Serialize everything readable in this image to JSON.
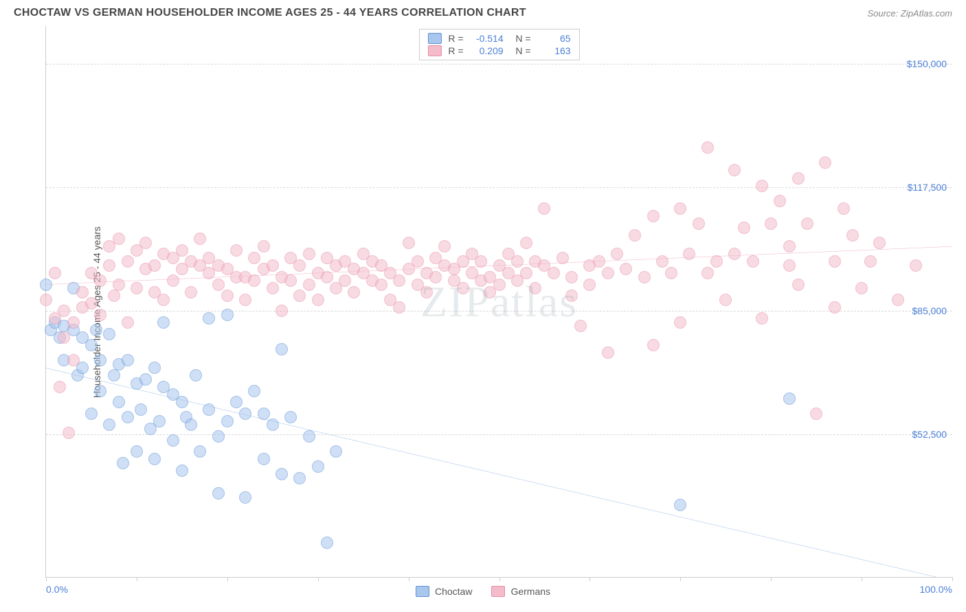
{
  "title": "CHOCTAW VS GERMAN HOUSEHOLDER INCOME AGES 25 - 44 YEARS CORRELATION CHART",
  "source_label": "Source: ZipAtlas.com",
  "ylabel": "Householder Income Ages 25 - 44 years",
  "watermark": "ZIPatlas",
  "chart": {
    "type": "scatter",
    "xlim": [
      0,
      100
    ],
    "ylim": [
      15000,
      160000
    ],
    "x_ticks": [
      0,
      10,
      20,
      30,
      40,
      50,
      60,
      70,
      80,
      90,
      100
    ],
    "x_tick_labels": {
      "0": "0.0%",
      "100": "100.0%"
    },
    "y_gridlines": [
      52500,
      85000,
      117500,
      150000
    ],
    "y_tick_labels": [
      "$52,500",
      "$85,000",
      "$117,500",
      "$150,000"
    ],
    "background_color": "#ffffff",
    "grid_color": "#d8d8d8",
    "axis_color": "#cccccc",
    "tick_label_color": "#4a7fd6",
    "point_radius": 9,
    "point_opacity": 0.55,
    "series": [
      {
        "name": "Choctaw",
        "fill": "#a9c6ed",
        "stroke": "#5b8fd6",
        "trend_color": "#2b6fd0",
        "trend_width": 2,
        "r": "-0.514",
        "n": "65",
        "trend": {
          "x1": 0,
          "y1": 70000,
          "x2": 100,
          "y2": 14000
        },
        "points": [
          [
            0,
            92000
          ],
          [
            0.5,
            80000
          ],
          [
            1,
            82000
          ],
          [
            1.5,
            78000
          ],
          [
            2,
            81000
          ],
          [
            2,
            72000
          ],
          [
            3,
            80000
          ],
          [
            3,
            91000
          ],
          [
            3.5,
            68000
          ],
          [
            4,
            78000
          ],
          [
            4,
            70000
          ],
          [
            5,
            76000
          ],
          [
            5,
            58000
          ],
          [
            5.5,
            80000
          ],
          [
            6,
            64000
          ],
          [
            6,
            72000
          ],
          [
            7,
            79000
          ],
          [
            7,
            55000
          ],
          [
            7.5,
            68000
          ],
          [
            8,
            71000
          ],
          [
            8,
            61000
          ],
          [
            8.5,
            45000
          ],
          [
            9,
            72000
          ],
          [
            9,
            57000
          ],
          [
            10,
            66000
          ],
          [
            10,
            48000
          ],
          [
            10.5,
            59000
          ],
          [
            11,
            67000
          ],
          [
            11.5,
            54000
          ],
          [
            12,
            70000
          ],
          [
            12,
            46000
          ],
          [
            12.5,
            56000
          ],
          [
            13,
            65000
          ],
          [
            13,
            82000
          ],
          [
            14,
            63000
          ],
          [
            14,
            51000
          ],
          [
            15,
            61000
          ],
          [
            15,
            43000
          ],
          [
            15.5,
            57000
          ],
          [
            16,
            55000
          ],
          [
            16.5,
            68000
          ],
          [
            17,
            48000
          ],
          [
            18,
            83000
          ],
          [
            18,
            59000
          ],
          [
            19,
            52000
          ],
          [
            19,
            37000
          ],
          [
            20,
            84000
          ],
          [
            20,
            56000
          ],
          [
            21,
            61000
          ],
          [
            22,
            36000
          ],
          [
            22,
            58000
          ],
          [
            23,
            64000
          ],
          [
            24,
            46000
          ],
          [
            24,
            58000
          ],
          [
            25,
            55000
          ],
          [
            26,
            42000
          ],
          [
            26,
            75000
          ],
          [
            27,
            57000
          ],
          [
            28,
            41000
          ],
          [
            29,
            52000
          ],
          [
            30,
            44000
          ],
          [
            31,
            24000
          ],
          [
            32,
            48000
          ],
          [
            70,
            34000
          ],
          [
            82,
            62000
          ]
        ]
      },
      {
        "name": "Germans",
        "fill": "#f4bccb",
        "stroke": "#e68aa5",
        "trend_color": "#e05a8a",
        "trend_width": 2,
        "r": "0.209",
        "n": "163",
        "trend": {
          "x1": 0,
          "y1": 92000,
          "x2": 100,
          "y2": 102000
        },
        "points": [
          [
            0,
            88000
          ],
          [
            1,
            83000
          ],
          [
            1,
            95000
          ],
          [
            1.5,
            65000
          ],
          [
            2,
            85000
          ],
          [
            2,
            78000
          ],
          [
            2.5,
            53000
          ],
          [
            3,
            72000
          ],
          [
            3,
            82000
          ],
          [
            4,
            90000
          ],
          [
            4,
            86000
          ],
          [
            5,
            87000
          ],
          [
            5,
            95000
          ],
          [
            6,
            93000
          ],
          [
            6,
            84000
          ],
          [
            7,
            97000
          ],
          [
            7,
            102000
          ],
          [
            7.5,
            89000
          ],
          [
            8,
            104000
          ],
          [
            8,
            92000
          ],
          [
            9,
            98000
          ],
          [
            9,
            82000
          ],
          [
            10,
            101000
          ],
          [
            10,
            91000
          ],
          [
            11,
            103000
          ],
          [
            11,
            96000
          ],
          [
            12,
            97000
          ],
          [
            12,
            90000
          ],
          [
            13,
            100000
          ],
          [
            13,
            88000
          ],
          [
            14,
            99000
          ],
          [
            14,
            93000
          ],
          [
            15,
            101000
          ],
          [
            15,
            96000
          ],
          [
            16,
            98000
          ],
          [
            16,
            90000
          ],
          [
            17,
            97000
          ],
          [
            17,
            104000
          ],
          [
            18,
            95000
          ],
          [
            18,
            99000
          ],
          [
            19,
            92000
          ],
          [
            19,
            97000
          ],
          [
            20,
            96000
          ],
          [
            20,
            89000
          ],
          [
            21,
            94000
          ],
          [
            21,
            101000
          ],
          [
            22,
            88000
          ],
          [
            22,
            94000
          ],
          [
            23,
            99000
          ],
          [
            23,
            93000
          ],
          [
            24,
            96000
          ],
          [
            24,
            102000
          ],
          [
            25,
            97000
          ],
          [
            25,
            91000
          ],
          [
            26,
            94000
          ],
          [
            26,
            85000
          ],
          [
            27,
            99000
          ],
          [
            27,
            93000
          ],
          [
            28,
            89000
          ],
          [
            28,
            97000
          ],
          [
            29,
            92000
          ],
          [
            29,
            100000
          ],
          [
            30,
            95000
          ],
          [
            30,
            88000
          ],
          [
            31,
            94000
          ],
          [
            31,
            99000
          ],
          [
            32,
            97000
          ],
          [
            32,
            91000
          ],
          [
            33,
            98000
          ],
          [
            33,
            93000
          ],
          [
            34,
            90000
          ],
          [
            34,
            96000
          ],
          [
            35,
            95000
          ],
          [
            35,
            100000
          ],
          [
            36,
            93000
          ],
          [
            36,
            98000
          ],
          [
            37,
            92000
          ],
          [
            37,
            97000
          ],
          [
            38,
            95000
          ],
          [
            38,
            88000
          ],
          [
            39,
            86000
          ],
          [
            39,
            93000
          ],
          [
            40,
            96000
          ],
          [
            40,
            103000
          ],
          [
            41,
            92000
          ],
          [
            41,
            98000
          ],
          [
            42,
            95000
          ],
          [
            42,
            90000
          ],
          [
            43,
            99000
          ],
          [
            43,
            94000
          ],
          [
            44,
            97000
          ],
          [
            44,
            102000
          ],
          [
            45,
            93000
          ],
          [
            45,
            96000
          ],
          [
            46,
            98000
          ],
          [
            46,
            91000
          ],
          [
            47,
            100000
          ],
          [
            47,
            95000
          ],
          [
            48,
            93000
          ],
          [
            48,
            98000
          ],
          [
            49,
            94000
          ],
          [
            49,
            90000
          ],
          [
            50,
            97000
          ],
          [
            50,
            92000
          ],
          [
            51,
            95000
          ],
          [
            51,
            100000
          ],
          [
            52,
            98000
          ],
          [
            52,
            93000
          ],
          [
            53,
            103000
          ],
          [
            53,
            95000
          ],
          [
            54,
            98000
          ],
          [
            54,
            91000
          ],
          [
            55,
            97000
          ],
          [
            55,
            112000
          ],
          [
            56,
            95000
          ],
          [
            57,
            99000
          ],
          [
            58,
            94000
          ],
          [
            58,
            89000
          ],
          [
            59,
            81000
          ],
          [
            60,
            97000
          ],
          [
            60,
            92000
          ],
          [
            61,
            98000
          ],
          [
            62,
            95000
          ],
          [
            62,
            74000
          ],
          [
            63,
            100000
          ],
          [
            64,
            96000
          ],
          [
            65,
            105000
          ],
          [
            66,
            94000
          ],
          [
            67,
            110000
          ],
          [
            67,
            76000
          ],
          [
            68,
            98000
          ],
          [
            69,
            95000
          ],
          [
            70,
            112000
          ],
          [
            70,
            82000
          ],
          [
            71,
            100000
          ],
          [
            72,
            108000
          ],
          [
            73,
            128000
          ],
          [
            73,
            95000
          ],
          [
            74,
            98000
          ],
          [
            75,
            88000
          ],
          [
            76,
            122000
          ],
          [
            76,
            100000
          ],
          [
            77,
            107000
          ],
          [
            78,
            98000
          ],
          [
            79,
            118000
          ],
          [
            79,
            83000
          ],
          [
            80,
            108000
          ],
          [
            81,
            114000
          ],
          [
            82,
            102000
          ],
          [
            82,
            97000
          ],
          [
            83,
            120000
          ],
          [
            83,
            92000
          ],
          [
            84,
            108000
          ],
          [
            85,
            58000
          ],
          [
            86,
            124000
          ],
          [
            87,
            98000
          ],
          [
            87,
            86000
          ],
          [
            88,
            112000
          ],
          [
            89,
            105000
          ],
          [
            90,
            91000
          ],
          [
            91,
            98000
          ],
          [
            92,
            103000
          ],
          [
            94,
            88000
          ],
          [
            96,
            97000
          ]
        ]
      }
    ]
  },
  "legend_bottom": [
    {
      "label": "Choctaw",
      "fill": "#a9c6ed",
      "stroke": "#5b8fd6"
    },
    {
      "label": "Germans",
      "fill": "#f4bccb",
      "stroke": "#e68aa5"
    }
  ]
}
